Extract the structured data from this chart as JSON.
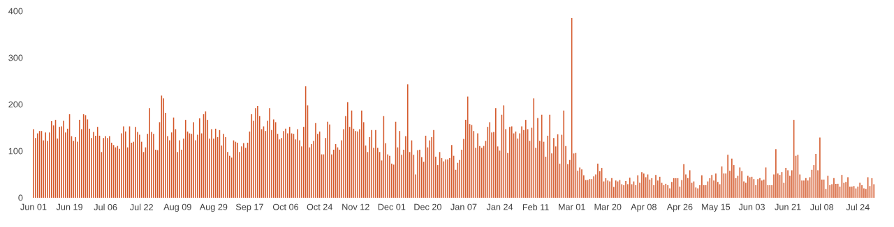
{
  "chart_data": {
    "type": "bar",
    "categories": [
      "Jun 01",
      null,
      null,
      null,
      null,
      null,
      null,
      null,
      null,
      null,
      null,
      null,
      null,
      null,
      null,
      null,
      null,
      null,
      "Jun 19",
      null,
      null,
      null,
      null,
      null,
      null,
      null,
      null,
      null,
      null,
      null,
      null,
      null,
      null,
      null,
      null,
      null,
      "Jul 06",
      null,
      null,
      null,
      null,
      null,
      null,
      null,
      null,
      null,
      null,
      null,
      null,
      null,
      null,
      null,
      null,
      null,
      "Jul 22",
      null,
      null,
      null,
      null,
      null,
      null,
      null,
      null,
      null,
      null,
      null,
      null,
      null,
      null,
      null,
      null,
      null,
      "Aug 09",
      null,
      null,
      null,
      null,
      null,
      null,
      null,
      null,
      null,
      null,
      null,
      null,
      null,
      null,
      null,
      null,
      null,
      "Aug 29",
      null,
      null,
      null,
      null,
      null,
      null,
      null,
      null,
      null,
      null,
      null,
      null,
      null,
      null,
      null,
      null,
      null,
      "Sep 17",
      null,
      null,
      null,
      null,
      null,
      null,
      null,
      null,
      null,
      null,
      null,
      null,
      null,
      null,
      null,
      null,
      null,
      "Oct 06",
      null,
      null,
      null,
      null,
      null,
      null,
      null,
      null,
      null,
      null,
      null,
      null,
      null,
      null,
      null,
      null,
      "Oct 24",
      null,
      null,
      null,
      null,
      null,
      null,
      null,
      null,
      null,
      null,
      null,
      null,
      null,
      null,
      null,
      null,
      null,
      "Nov 12",
      null,
      null,
      null,
      null,
      null,
      null,
      null,
      null,
      null,
      null,
      null,
      null,
      null,
      null,
      null,
      null,
      null,
      "Dec 01",
      null,
      null,
      null,
      null,
      null,
      null,
      null,
      null,
      null,
      null,
      null,
      null,
      null,
      null,
      null,
      null,
      null,
      "Dec 20",
      null,
      null,
      null,
      null,
      null,
      null,
      null,
      null,
      null,
      null,
      null,
      null,
      null,
      null,
      null,
      null,
      null,
      "Jan 07",
      null,
      null,
      null,
      null,
      null,
      null,
      null,
      null,
      null,
      null,
      null,
      null,
      null,
      null,
      null,
      null,
      null,
      "Jan 24",
      null,
      null,
      null,
      null,
      null,
      null,
      null,
      null,
      null,
      null,
      null,
      null,
      null,
      null,
      null,
      null,
      null,
      "Feb 11",
      null,
      null,
      null,
      null,
      null,
      null,
      null,
      null,
      null,
      null,
      null,
      null,
      null,
      null,
      null,
      null,
      null,
      "Mar 01",
      null,
      null,
      null,
      null,
      null,
      null,
      null,
      null,
      null,
      null,
      null,
      null,
      null,
      null,
      null,
      null,
      null,
      "Mar 20",
      null,
      null,
      null,
      null,
      null,
      null,
      null,
      null,
      null,
      null,
      null,
      null,
      null,
      null,
      null,
      null,
      null,
      "Apr 08",
      null,
      null,
      null,
      null,
      null,
      null,
      null,
      null,
      null,
      null,
      null,
      null,
      null,
      null,
      null,
      null,
      null,
      "Apr 26",
      null,
      null,
      null,
      null,
      null,
      null,
      null,
      null,
      null,
      null,
      null,
      null,
      null,
      null,
      null,
      null,
      null,
      "May 15",
      null,
      null,
      null,
      null,
      null,
      null,
      null,
      null,
      null,
      null,
      null,
      null,
      null,
      null,
      null,
      null,
      null,
      "Jun 03",
      null,
      null,
      null,
      null,
      null,
      null,
      null,
      null,
      null,
      null,
      null,
      null,
      null,
      null,
      null,
      null,
      null,
      "Jun 21",
      null,
      null,
      null,
      null,
      null,
      null,
      null,
      null,
      null,
      null,
      null,
      null,
      null,
      null,
      null,
      null,
      "Jul 08",
      null,
      null,
      null,
      null,
      null,
      null,
      null,
      null,
      null,
      null,
      null,
      null,
      null,
      null,
      null,
      null,
      null,
      "Jul 24",
      null,
      null,
      null,
      null,
      null,
      null,
      null,
      null
    ],
    "values": [
      147,
      128,
      138,
      143,
      143,
      123,
      140,
      122,
      140,
      164,
      155,
      167,
      127,
      152,
      153,
      165,
      140,
      148,
      179,
      132,
      122,
      130,
      120,
      167,
      147,
      179,
      177,
      168,
      148,
      128,
      141,
      133,
      152,
      133,
      98,
      128,
      132,
      128,
      132,
      118,
      113,
      108,
      111,
      105,
      138,
      153,
      142,
      108,
      153,
      118,
      120,
      152,
      141,
      135,
      120,
      98,
      108,
      137,
      192,
      141,
      137,
      103,
      102,
      162,
      219,
      213,
      182,
      132,
      123,
      140,
      172,
      147,
      98,
      123,
      103,
      127,
      167,
      142,
      138,
      137,
      162,
      123,
      135,
      170,
      138,
      179,
      185,
      167,
      127,
      147,
      127,
      148,
      130,
      145,
      112,
      137,
      130,
      98,
      90,
      86,
      123,
      120,
      118,
      98,
      110,
      117,
      107,
      118,
      142,
      179,
      165,
      192,
      197,
      175,
      147,
      153,
      143,
      165,
      192,
      145,
      168,
      162,
      137,
      125,
      128,
      143,
      148,
      138,
      152,
      138,
      137,
      125,
      147,
      123,
      110,
      152,
      239,
      198,
      108,
      115,
      122,
      160,
      137,
      142,
      93,
      93,
      128,
      163,
      157,
      93,
      103,
      115,
      108,
      103,
      123,
      147,
      175,
      205,
      152,
      187,
      148,
      143,
      142,
      147,
      187,
      162,
      112,
      98,
      130,
      145,
      107,
      145,
      107,
      98,
      80,
      175,
      117,
      93,
      90,
      73,
      71,
      163,
      108,
      143,
      92,
      103,
      132,
      243,
      98,
      123,
      92,
      50,
      102,
      103,
      87,
      77,
      133,
      108,
      123,
      130,
      145,
      88,
      70,
      98,
      85,
      78,
      82,
      82,
      85,
      113,
      90,
      60,
      75,
      81,
      103,
      126,
      167,
      217,
      158,
      156,
      143,
      107,
      138,
      111,
      107,
      111,
      122,
      152,
      162,
      140,
      141,
      192,
      110,
      101,
      178,
      198,
      147,
      96,
      152,
      153,
      138,
      142,
      127,
      138,
      153,
      145,
      167,
      147,
      122,
      150,
      213,
      107,
      171,
      122,
      178,
      120,
      88,
      133,
      178,
      95,
      128,
      110,
      136,
      73,
      135,
      187,
      111,
      72,
      81,
      385,
      95,
      96,
      58,
      65,
      61,
      48,
      38,
      38,
      40,
      40,
      46,
      50,
      73,
      57,
      64,
      35,
      42,
      37,
      35,
      42,
      23,
      37,
      35,
      38,
      29,
      27,
      36,
      29,
      43,
      29,
      35,
      27,
      48,
      32,
      55,
      52,
      44,
      50,
      39,
      42,
      27,
      49,
      37,
      45,
      32,
      27,
      30,
      27,
      20,
      34,
      42,
      42,
      42,
      24,
      38,
      72,
      50,
      42,
      59,
      32,
      35,
      22,
      20,
      27,
      48,
      27,
      27,
      35,
      42,
      49,
      37,
      52,
      34,
      29,
      67,
      52,
      52,
      92,
      58,
      84,
      70,
      42,
      47,
      65,
      57,
      35,
      32,
      47,
      44,
      45,
      40,
      27,
      40,
      42,
      37,
      39,
      65,
      27,
      27,
      27,
      50,
      104,
      52,
      49,
      55,
      32,
      64,
      59,
      47,
      59,
      167,
      90,
      92,
      50,
      37,
      37,
      42,
      37,
      44,
      60,
      70,
      94,
      59,
      129,
      39,
      39,
      19,
      47,
      27,
      29,
      42,
      30,
      30,
      24,
      49,
      32,
      34,
      44,
      24,
      24,
      25,
      20,
      24,
      32,
      27,
      20,
      19,
      44,
      25,
      42,
      29
    ],
    "color": "#d4582a",
    "ylim": [
      0,
      400
    ],
    "yticks": [
      0,
      100,
      200,
      300,
      400
    ]
  }
}
